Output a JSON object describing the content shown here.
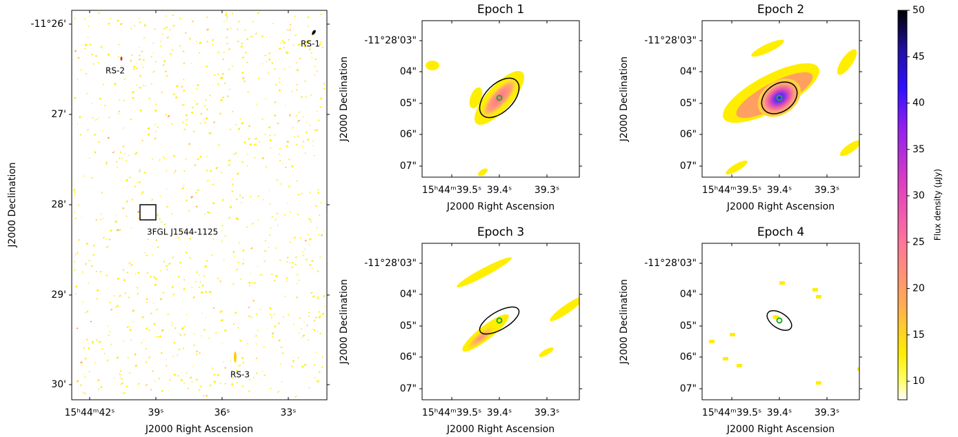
{
  "left_panel": {
    "xlabel": "J2000 Right Ascension",
    "ylabel": "J2000 Declination",
    "xticks": [
      "15ʰ44ᵐ42ˢ",
      "39ˢ",
      "36ˢ",
      "33ˢ"
    ],
    "yticks": [
      "-11°26'",
      "27'",
      "28'",
      "29'",
      "30'"
    ],
    "annotations": [
      "RS-1",
      "RS-2",
      "RS-3",
      "3FGL J1544-1125"
    ]
  },
  "epochs": [
    {
      "title": "Epoch 1",
      "xlabel": "J2000 Right Ascension",
      "ylabel": "J2000 Declination",
      "xticks": [
        "15ʰ44ᵐ39.5ˢ",
        "39.4ˢ",
        "39.3ˢ"
      ],
      "yticks": [
        "-11°28'03\"",
        "04\"",
        "05\"",
        "06\"",
        "07\""
      ]
    },
    {
      "title": "Epoch 2",
      "xlabel": "J2000 Right Ascension",
      "ylabel": "J2000 Declination",
      "xticks": [
        "15ʰ44ᵐ39.5ˢ",
        "39.4ˢ",
        "39.3ˢ"
      ],
      "yticks": [
        "-11°28'03\"",
        "04\"",
        "05\"",
        "06\"",
        "07\""
      ]
    },
    {
      "title": "Epoch 3",
      "xlabel": "J2000 Right Ascension",
      "ylabel": "J2000 Declination",
      "xticks": [
        "15ʰ44ᵐ39.5ˢ",
        "39.4ˢ",
        "39.3ˢ"
      ],
      "yticks": [
        "-11°28'03\"",
        "04\"",
        "05\"",
        "06\"",
        "07\""
      ]
    },
    {
      "title": "Epoch 4",
      "xlabel": "J2000 Right Ascension",
      "ylabel": "J2000 Declination",
      "xticks": [
        "15ʰ44ᵐ39.5ˢ",
        "39.4ˢ",
        "39.3ˢ"
      ],
      "yticks": [
        "-11°28'03\"",
        "04\"",
        "05\"",
        "06\"",
        "07\""
      ]
    }
  ],
  "colorbar": {
    "label": "Flux density (μJy)",
    "lim": [
      8,
      50
    ],
    "ticks": [
      10,
      15,
      20,
      25,
      30,
      35,
      40,
      45,
      50
    ]
  }
}
